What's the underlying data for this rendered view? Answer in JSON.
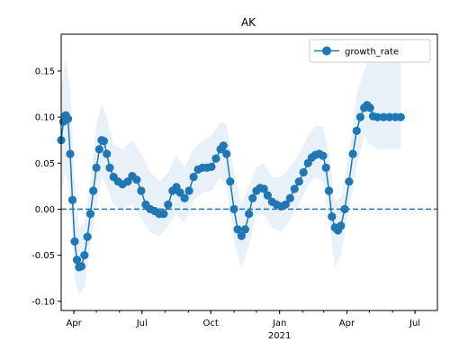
{
  "chart_data": {
    "type": "line",
    "title": "AK",
    "xlabel": "",
    "ylabel": "",
    "x_start": "2020-03-15",
    "x_end": "2021-07-31",
    "ylim": [
      -0.11,
      0.19
    ],
    "yticks": [
      -0.1,
      -0.05,
      0.0,
      0.05,
      0.1,
      0.15
    ],
    "xticks": [
      {
        "date": "2020-04-01",
        "label": "Apr",
        "year": ""
      },
      {
        "date": "2020-07-01",
        "label": "Jul",
        "year": ""
      },
      {
        "date": "2020-10-01",
        "label": "Oct",
        "year": ""
      },
      {
        "date": "2021-01-01",
        "label": "Jan",
        "year": "2021"
      },
      {
        "date": "2021-04-01",
        "label": "Apr",
        "year": ""
      },
      {
        "date": "2021-07-01",
        "label": "Jul",
        "year": ""
      }
    ],
    "reference_line": 0.0,
    "grid": false,
    "legend": "top-right",
    "colors": {
      "series": "#1f77b4",
      "band": "#e8f0f8"
    },
    "series": [
      {
        "name": "growth_rate",
        "points": [
          [
            "2020-03-15",
            0.075
          ],
          [
            "2020-03-18",
            0.095
          ],
          [
            "2020-03-21",
            0.102
          ],
          [
            "2020-03-24",
            0.098
          ],
          [
            "2020-03-27",
            0.06
          ],
          [
            "2020-03-30",
            0.01
          ],
          [
            "2020-04-02",
            -0.035
          ],
          [
            "2020-04-05",
            -0.055
          ],
          [
            "2020-04-08",
            -0.063
          ],
          [
            "2020-04-11",
            -0.062
          ],
          [
            "2020-04-15",
            -0.05
          ],
          [
            "2020-04-19",
            -0.03
          ],
          [
            "2020-04-23",
            -0.005
          ],
          [
            "2020-04-27",
            0.02
          ],
          [
            "2020-05-01",
            0.045
          ],
          [
            "2020-05-05",
            0.065
          ],
          [
            "2020-05-08",
            0.075
          ],
          [
            "2020-05-11",
            0.074
          ],
          [
            "2020-05-15",
            0.06
          ],
          [
            "2020-05-19",
            0.045
          ],
          [
            "2020-05-24",
            0.035
          ],
          [
            "2020-05-30",
            0.03
          ],
          [
            "2020-06-05",
            0.027
          ],
          [
            "2020-06-12",
            0.03
          ],
          [
            "2020-06-18",
            0.036
          ],
          [
            "2020-06-24",
            0.032
          ],
          [
            "2020-06-30",
            0.02
          ],
          [
            "2020-07-06",
            0.005
          ],
          [
            "2020-07-12",
            0.0
          ],
          [
            "2020-07-18",
            -0.002
          ],
          [
            "2020-07-24",
            -0.005
          ],
          [
            "2020-07-30",
            -0.005
          ],
          [
            "2020-08-05",
            0.005
          ],
          [
            "2020-08-11",
            0.02
          ],
          [
            "2020-08-16",
            0.024
          ],
          [
            "2020-08-21",
            0.018
          ],
          [
            "2020-08-27",
            0.012
          ],
          [
            "2020-09-02",
            0.02
          ],
          [
            "2020-09-08",
            0.035
          ],
          [
            "2020-09-14",
            0.043
          ],
          [
            "2020-09-20",
            0.045
          ],
          [
            "2020-09-26",
            0.045
          ],
          [
            "2020-10-02",
            0.046
          ],
          [
            "2020-10-08",
            0.055
          ],
          [
            "2020-10-14",
            0.065
          ],
          [
            "2020-10-18",
            0.069
          ],
          [
            "2020-10-22",
            0.06
          ],
          [
            "2020-10-27",
            0.03
          ],
          [
            "2020-11-01",
            0.0
          ],
          [
            "2020-11-06",
            -0.022
          ],
          [
            "2020-11-11",
            -0.029
          ],
          [
            "2020-11-16",
            -0.022
          ],
          [
            "2020-11-21",
            -0.005
          ],
          [
            "2020-11-26",
            0.012
          ],
          [
            "2020-12-01",
            0.02
          ],
          [
            "2020-12-06",
            0.023
          ],
          [
            "2020-12-11",
            0.022
          ],
          [
            "2020-12-16",
            0.015
          ],
          [
            "2020-12-22",
            0.008
          ],
          [
            "2020-12-28",
            0.005
          ],
          [
            "2021-01-03",
            0.003
          ],
          [
            "2021-01-09",
            0.005
          ],
          [
            "2021-01-15",
            0.012
          ],
          [
            "2021-01-21",
            0.022
          ],
          [
            "2021-01-27",
            0.03
          ],
          [
            "2021-02-02",
            0.04
          ],
          [
            "2021-02-08",
            0.05
          ],
          [
            "2021-02-13",
            0.056
          ],
          [
            "2021-02-18",
            0.059
          ],
          [
            "2021-02-23",
            0.06
          ],
          [
            "2021-02-28",
            0.058
          ],
          [
            "2021-03-04",
            0.045
          ],
          [
            "2021-03-08",
            0.02
          ],
          [
            "2021-03-12",
            -0.008
          ],
          [
            "2021-03-16",
            -0.02
          ],
          [
            "2021-03-20",
            -0.023
          ],
          [
            "2021-03-24",
            -0.018
          ],
          [
            "2021-03-29",
            0.0
          ],
          [
            "2021-04-04",
            0.03
          ],
          [
            "2021-04-09",
            0.06
          ],
          [
            "2021-04-14",
            0.085
          ],
          [
            "2021-04-19",
            0.1
          ],
          [
            "2021-04-24",
            0.11
          ],
          [
            "2021-04-28",
            0.113
          ],
          [
            "2021-05-02",
            0.11
          ],
          [
            "2021-05-06",
            0.101
          ],
          [
            "2021-05-12",
            0.1
          ],
          [
            "2021-05-20",
            0.1
          ],
          [
            "2021-05-28",
            0.1
          ],
          [
            "2021-06-05",
            0.1
          ],
          [
            "2021-06-12",
            0.1
          ]
        ]
      }
    ],
    "band": [
      [
        "2020-03-15",
        0.02,
        0.13
      ],
      [
        "2020-03-21",
        0.04,
        0.165
      ],
      [
        "2020-03-27",
        0.01,
        0.13
      ],
      [
        "2020-04-02",
        -0.075,
        0.03
      ],
      [
        "2020-04-08",
        -0.093,
        -0.02
      ],
      [
        "2020-04-15",
        -0.085,
        -0.015
      ],
      [
        "2020-04-23",
        -0.04,
        0.03
      ],
      [
        "2020-05-01",
        0.0,
        0.09
      ],
      [
        "2020-05-08",
        0.035,
        0.115
      ],
      [
        "2020-05-15",
        0.025,
        0.1
      ],
      [
        "2020-05-24",
        0.005,
        0.07
      ],
      [
        "2020-06-05",
        0.0,
        0.065
      ],
      [
        "2020-06-18",
        0.005,
        0.075
      ],
      [
        "2020-06-30",
        -0.01,
        0.06
      ],
      [
        "2020-07-12",
        -0.025,
        0.04
      ],
      [
        "2020-07-24",
        -0.03,
        0.03
      ],
      [
        "2020-08-05",
        -0.018,
        0.04
      ],
      [
        "2020-08-16",
        -0.005,
        0.058
      ],
      [
        "2020-08-27",
        -0.015,
        0.045
      ],
      [
        "2020-09-08",
        0.01,
        0.065
      ],
      [
        "2020-09-20",
        0.018,
        0.075
      ],
      [
        "2020-10-02",
        0.02,
        0.08
      ],
      [
        "2020-10-14",
        0.035,
        0.095
      ],
      [
        "2020-10-22",
        0.025,
        0.092
      ],
      [
        "2020-11-01",
        -0.035,
        0.04
      ],
      [
        "2020-11-11",
        -0.065,
        0.005
      ],
      [
        "2020-11-21",
        -0.04,
        0.025
      ],
      [
        "2020-12-01",
        -0.005,
        0.045
      ],
      [
        "2020-12-11",
        -0.005,
        0.05
      ],
      [
        "2020-12-22",
        -0.02,
        0.035
      ],
      [
        "2021-01-03",
        -0.025,
        0.035
      ],
      [
        "2021-01-15",
        -0.012,
        0.045
      ],
      [
        "2021-01-27",
        0.005,
        0.06
      ],
      [
        "2021-02-08",
        0.025,
        0.08
      ],
      [
        "2021-02-18",
        0.035,
        0.09
      ],
      [
        "2021-02-28",
        0.03,
        0.09
      ],
      [
        "2021-03-08",
        -0.01,
        0.06
      ],
      [
        "2021-03-16",
        -0.065,
        0.01
      ],
      [
        "2021-03-24",
        -0.05,
        0.012
      ],
      [
        "2021-04-04",
        0.0,
        0.06
      ],
      [
        "2021-04-14",
        0.045,
        0.125
      ],
      [
        "2021-04-24",
        0.08,
        0.15
      ],
      [
        "2021-05-02",
        0.07,
        0.17
      ],
      [
        "2021-05-12",
        0.065,
        0.16
      ],
      [
        "2021-05-28",
        0.065,
        0.16
      ],
      [
        "2021-06-12",
        0.065,
        0.16
      ]
    ]
  }
}
